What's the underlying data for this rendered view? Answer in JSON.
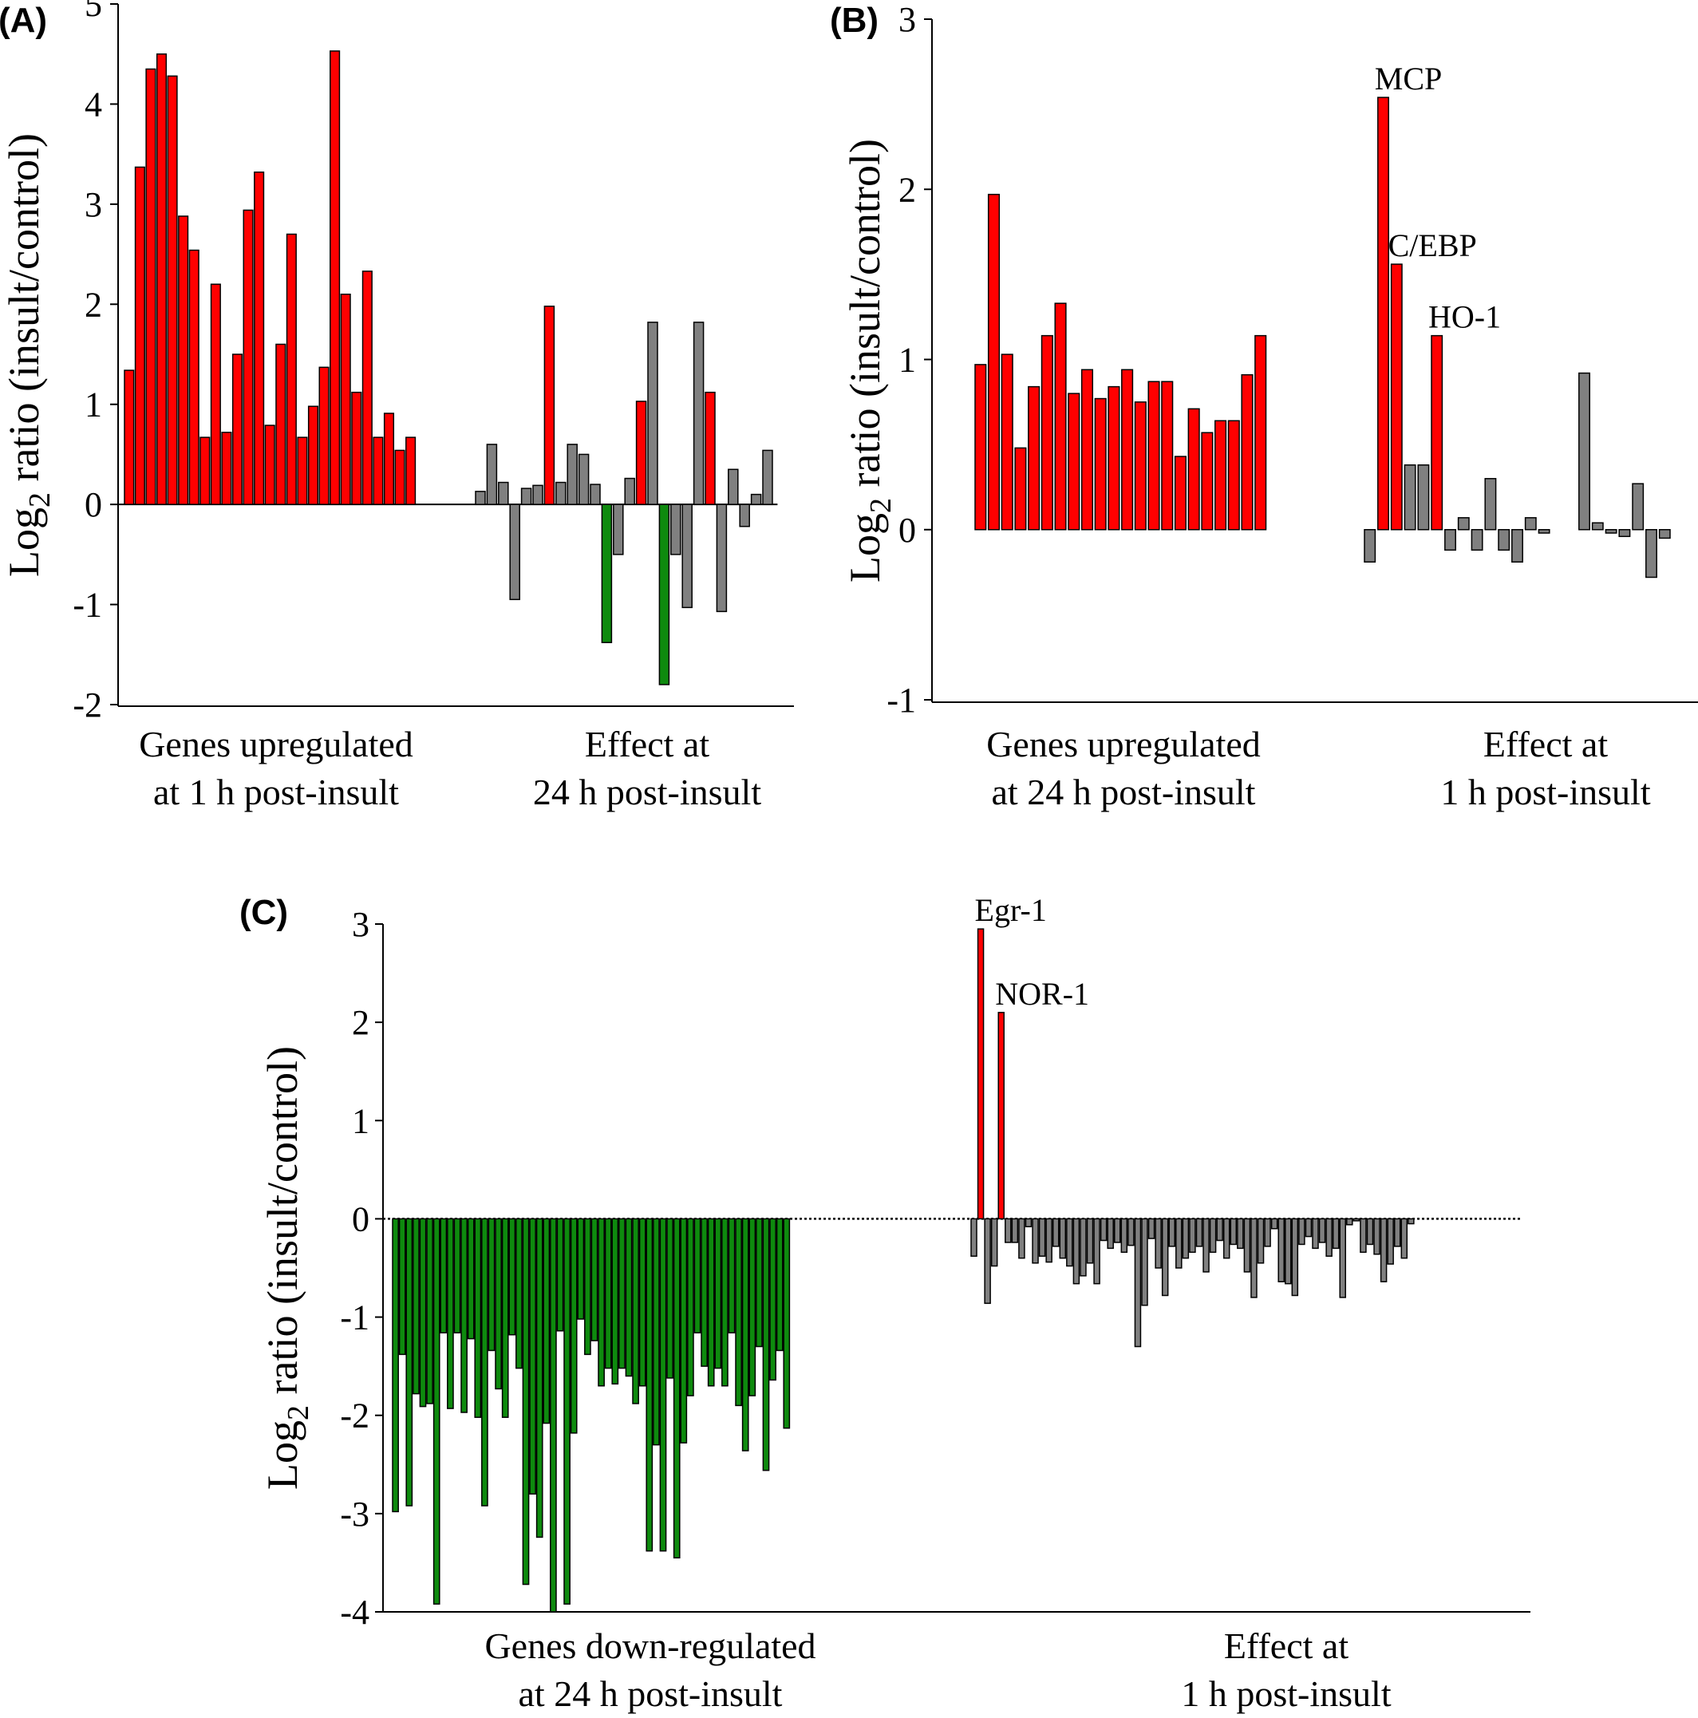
{
  "colors": {
    "up": "#ff0000",
    "down": "#0e8a0e",
    "neutral": "#808080"
  },
  "ylabel": "ratio (insult/control)",
  "ylabel_prefix": "Log",
  "ylabel_sub": "2",
  "chart_data": [
    {
      "id": "A",
      "panel_label": "(A)",
      "type": "bar",
      "ylim": [
        -2,
        5
      ],
      "yticks": [
        5,
        4,
        3,
        2,
        1,
        0,
        -1,
        -2
      ],
      "zero_line": "solid",
      "groups": [
        {
          "label_lines": [
            "Genes upregulated",
            "at 1 h post-insult"
          ],
          "values": [
            1.34,
            3.37,
            4.35,
            4.5,
            4.28,
            2.88,
            2.54,
            0.67,
            2.2,
            0.72,
            1.5,
            2.94,
            3.32,
            0.79,
            1.6,
            2.7,
            0.67,
            0.98,
            1.37,
            4.53,
            2.1,
            1.12,
            2.33,
            0.67,
            0.91,
            0.54,
            0.67
          ],
          "colors": [
            "up",
            "up",
            "up",
            "up",
            "up",
            "up",
            "up",
            "up",
            "up",
            "up",
            "up",
            "up",
            "up",
            "up",
            "up",
            "up",
            "up",
            "up",
            "up",
            "up",
            "up",
            "up",
            "up",
            "up",
            "up",
            "up",
            "up"
          ]
        },
        {
          "label_lines": [
            "Effect at",
            "24 h post-insult"
          ],
          "values": [
            0.13,
            0.6,
            0.22,
            -0.95,
            0.16,
            0.19,
            1.98,
            0.22,
            0.6,
            0.5,
            0.2,
            -1.38,
            -0.5,
            0.26,
            1.03,
            1.82,
            0,
            -0.5,
            -1.03,
            1.82,
            1.12,
            -1.07,
            0.35,
            -0.22,
            0.1,
            0.54
          ],
          "colors": [
            "neutral",
            "neutral",
            "neutral",
            "neutral",
            "neutral",
            "neutral",
            "up",
            "neutral",
            "neutral",
            "neutral",
            "neutral",
            "down",
            "neutral",
            "neutral",
            "up",
            "neutral",
            "neutral",
            "neutral",
            "neutral",
            "neutral",
            "up",
            "neutral",
            "neutral",
            "neutral",
            "neutral",
            "neutral"
          ],
          "extra": {
            "index": 16,
            "value": -1.8,
            "color": "down"
          }
        }
      ]
    },
    {
      "id": "B",
      "panel_label": "(B)",
      "type": "bar",
      "ylim": [
        -1,
        3
      ],
      "yticks": [
        3,
        2,
        1,
        0,
        -1
      ],
      "zero_line": "none",
      "groups": [
        {
          "label_lines": [
            "Genes upregulated",
            "at 24 h post-insult"
          ],
          "values": [
            0.97,
            1.97,
            1.03,
            0.48,
            0.84,
            1.14,
            1.33,
            0.8,
            0.94,
            0.77,
            0.84,
            0.94,
            0.75,
            0.87,
            0.87,
            0.43,
            0.71,
            0.57,
            0.64,
            0.64,
            0.91,
            1.14
          ],
          "colors": [
            "up",
            "up",
            "up",
            "up",
            "up",
            "up",
            "up",
            "up",
            "up",
            "up",
            "up",
            "up",
            "up",
            "up",
            "up",
            "up",
            "up",
            "up",
            "up",
            "up",
            "up",
            "up"
          ]
        },
        {
          "label_lines": [
            "Effect at",
            "1 h post-insult"
          ],
          "values": [
            -0.19,
            2.54,
            1.56,
            0.38,
            0.38,
            1.14,
            -0.12,
            0.07,
            -0.12,
            0.3,
            -0.12,
            -0.19,
            0.07,
            -0.02,
            0,
            0,
            0.92,
            0.04,
            -0.02,
            -0.04,
            0.27,
            -0.28,
            -0.05
          ],
          "colors": [
            "neutral",
            "up",
            "up",
            "neutral",
            "neutral",
            "up",
            "neutral",
            "neutral",
            "neutral",
            "neutral",
            "neutral",
            "neutral",
            "neutral",
            "neutral",
            "neutral",
            "neutral",
            "neutral",
            "neutral",
            "neutral",
            "neutral",
            "neutral",
            "neutral",
            "neutral"
          ]
        }
      ],
      "annotations": [
        {
          "text": "MCP",
          "group": 1,
          "index": 1
        },
        {
          "text": "C/EBP",
          "group": 1,
          "index": 2
        },
        {
          "text": "HO-1",
          "group": 1,
          "index": 5
        }
      ]
    },
    {
      "id": "C",
      "panel_label": "(C)",
      "type": "bar",
      "ylim": [
        -4,
        3
      ],
      "yticks": [
        3,
        2,
        1,
        0,
        -1,
        -2,
        -3,
        -4
      ],
      "zero_line": "dotted",
      "groups": [
        {
          "label_lines": [
            "Genes down-regulated",
            "at 24 h post-insult"
          ],
          "values": [
            -2.98,
            -1.38,
            -2.92,
            -1.78,
            -1.91,
            -1.88,
            -3.92,
            -1.16,
            -1.93,
            -1.16,
            -1.97,
            -1.22,
            -2.02,
            -2.92,
            -1.34,
            -1.73,
            -2.02,
            -1.18,
            -1.52,
            -3.72,
            -2.8,
            -3.24,
            -2.08,
            -4.0,
            -1.14,
            -3.92,
            -2.18,
            -1.02,
            -1.38,
            -1.24,
            -1.7,
            -1.52,
            -1.68,
            -1.52,
            -1.6,
            -1.88,
            -1.7,
            -3.38,
            -2.3,
            -3.38,
            -1.62,
            -3.45,
            -2.28,
            -1.8,
            -1.16,
            -1.5,
            -1.7,
            -1.52,
            -1.7,
            -1.16,
            -1.9,
            -2.36,
            -1.8,
            -1.3,
            -2.56,
            -1.64,
            -1.34,
            -2.13
          ],
          "colors": [
            "down",
            "down",
            "down",
            "down",
            "down",
            "down",
            "down",
            "down",
            "down",
            "down",
            "down",
            "down",
            "down",
            "down",
            "down",
            "down",
            "down",
            "down",
            "down",
            "down",
            "down",
            "down",
            "down",
            "down",
            "down",
            "down",
            "down",
            "down",
            "down",
            "down",
            "down",
            "down",
            "down",
            "down",
            "down",
            "down",
            "down",
            "down",
            "down",
            "down",
            "down",
            "down",
            "down",
            "down",
            "down",
            "down",
            "down",
            "down",
            "down",
            "down",
            "down",
            "down",
            "down",
            "down",
            "down",
            "down",
            "down",
            "down"
          ]
        },
        {
          "label_lines": [
            "Effect at",
            "1 h post-insult"
          ],
          "values": [
            -0.38,
            2.95,
            -0.86,
            -0.48,
            2.1,
            -0.24,
            -0.24,
            -0.4,
            -0.08,
            -0.45,
            -0.38,
            -0.44,
            -0.28,
            -0.4,
            -0.48,
            -0.66,
            -0.58,
            -0.45,
            -0.66,
            -0.22,
            -0.3,
            -0.24,
            -0.34,
            -0.27,
            -1.3,
            -0.88,
            -0.2,
            -0.5,
            -0.78,
            -0.28,
            -0.5,
            -0.4,
            -0.34,
            -0.28,
            -0.54,
            -0.34,
            -0.22,
            -0.4,
            -0.26,
            -0.3,
            -0.54,
            -0.8,
            -0.45,
            -0.28,
            -0.1,
            -0.64,
            -0.66,
            -0.78,
            -0.26,
            -0.18,
            -0.3,
            -0.24,
            -0.38,
            -0.3,
            -0.8,
            -0.06,
            -0.02,
            -0.34,
            -0.26,
            -0.36,
            -0.64,
            -0.46,
            -0.28,
            -0.4,
            -0.05
          ],
          "colors": [
            "neutral",
            "up",
            "neutral",
            "neutral",
            "up",
            "neutral",
            "neutral",
            "neutral",
            "neutral",
            "neutral",
            "neutral",
            "neutral",
            "neutral",
            "neutral",
            "neutral",
            "neutral",
            "neutral",
            "neutral",
            "neutral",
            "neutral",
            "neutral",
            "neutral",
            "neutral",
            "neutral",
            "neutral",
            "neutral",
            "neutral",
            "neutral",
            "neutral",
            "neutral",
            "neutral",
            "neutral",
            "neutral",
            "neutral",
            "neutral",
            "neutral",
            "neutral",
            "neutral",
            "neutral",
            "neutral",
            "neutral",
            "neutral",
            "neutral",
            "neutral",
            "neutral",
            "neutral",
            "neutral",
            "neutral",
            "neutral",
            "neutral",
            "neutral",
            "neutral",
            "neutral",
            "neutral",
            "neutral",
            "neutral",
            "neutral",
            "neutral",
            "neutral",
            "neutral",
            "neutral",
            "neutral",
            "neutral",
            "neutral",
            "neutral"
          ]
        }
      ],
      "annotations": [
        {
          "text": "Egr-1",
          "group": 1,
          "index": 1
        },
        {
          "text": "NOR-1",
          "group": 1,
          "index": 4
        }
      ]
    }
  ]
}
